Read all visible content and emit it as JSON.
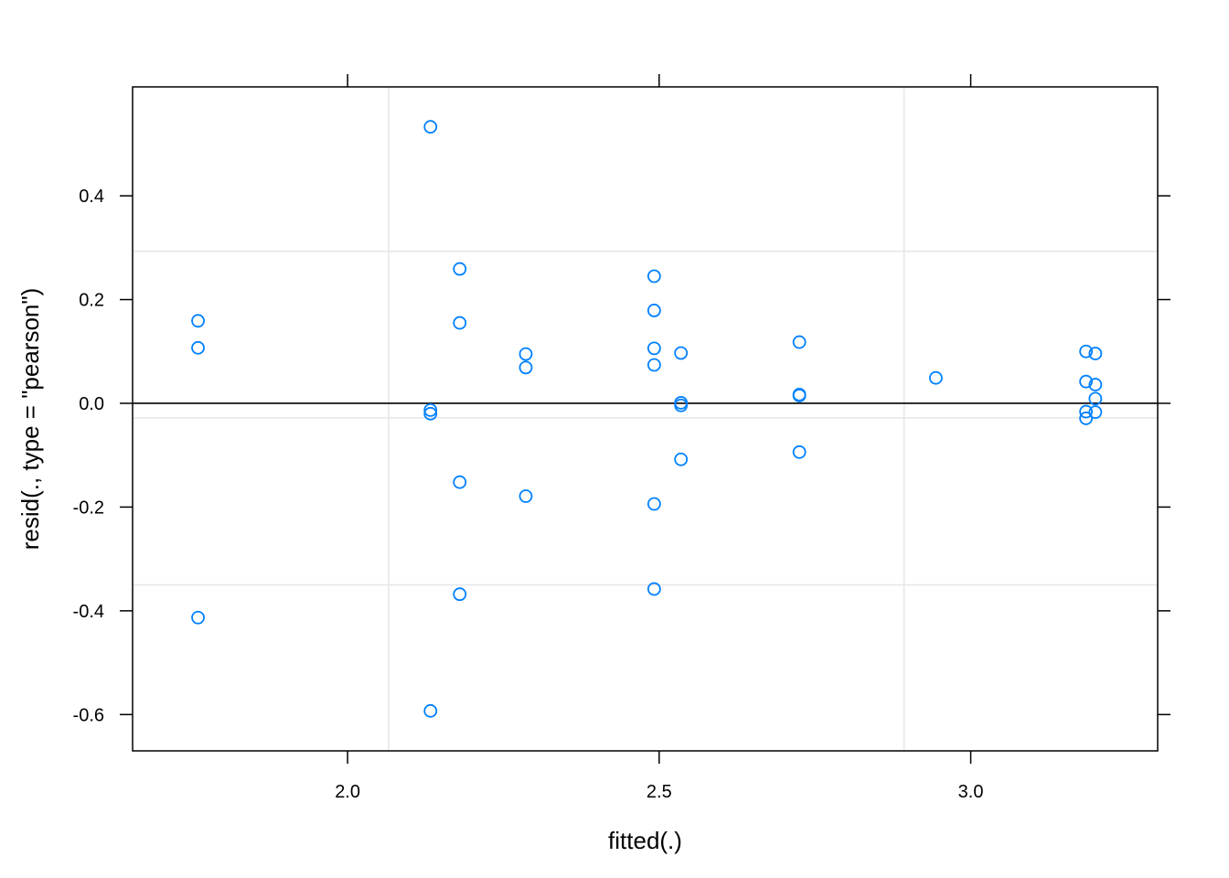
{
  "chart_data": {
    "type": "scatter",
    "title": "",
    "xlabel": "fitted(.)",
    "ylabel": "resid(., type = \"pearson\")",
    "xlim": [
      1.655,
      3.3
    ],
    "ylim": [
      -0.67,
      0.61
    ],
    "x_ticks": [
      2.0,
      2.5,
      3.0
    ],
    "x_tick_labels": [
      "2.0",
      "2.5",
      "3.0"
    ],
    "y_ticks": [
      -0.6,
      -0.4,
      -0.2,
      0.0,
      0.2,
      0.4
    ],
    "y_tick_labels": [
      "-0.6",
      "-0.4",
      "-0.2",
      "0.0",
      "0.2",
      "0.4"
    ],
    "grid_x": [
      2.066,
      2.893
    ],
    "grid_y": [
      -0.35,
      -0.028,
      0.293
    ],
    "reference_line_y": 0.0,
    "grid": true,
    "point_color": "#0080ff",
    "series": [
      {
        "x": [
          1.76,
          1.76,
          1.76,
          2.133,
          2.133,
          2.133,
          2.133,
          2.18,
          2.18,
          2.18,
          2.18,
          2.286,
          2.286,
          2.286,
          2.492,
          2.492,
          2.492,
          2.492,
          2.492,
          2.492,
          2.535,
          2.535,
          2.535,
          2.535,
          2.725,
          2.725,
          2.725,
          2.725,
          2.944,
          3.185,
          3.185,
          3.185,
          3.185,
          3.2,
          3.2,
          3.2,
          3.2
        ],
        "y": [
          0.159,
          0.107,
          -0.413,
          0.533,
          -0.013,
          -0.02,
          -0.593,
          0.259,
          0.155,
          -0.152,
          -0.368,
          0.095,
          0.069,
          -0.179,
          0.245,
          0.179,
          0.106,
          0.074,
          -0.194,
          -0.358,
          0.097,
          0.001,
          -0.004,
          -0.108,
          0.118,
          0.017,
          0.015,
          -0.094,
          0.049,
          0.1,
          0.042,
          -0.016,
          -0.029,
          0.096,
          0.036,
          0.009,
          -0.017
        ]
      }
    ]
  }
}
